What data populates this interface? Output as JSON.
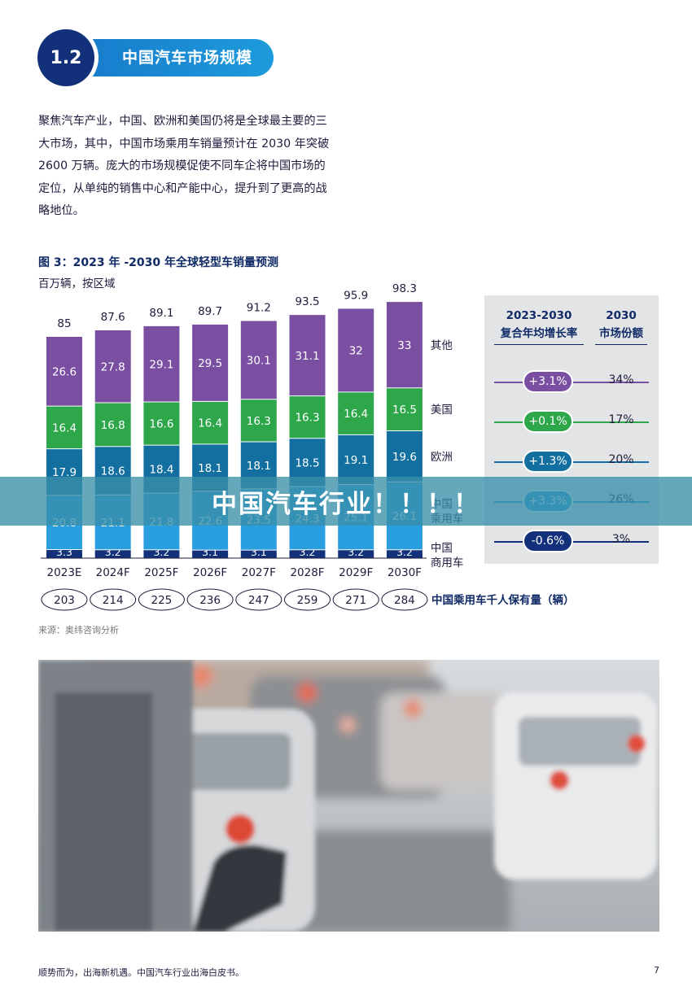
{
  "section": {
    "number": "1.2",
    "title": "中国汽车市场规模"
  },
  "intro_text": "聚焦汽车产业，中国、欧洲和美国仍将是全球最主要的三大市场，其中，中国市场乘用车销量预计在 2030 年突破 2600 万辆。庞大的市场规模促使不同车企将中国市场的定位，从单纯的销售中心和产能中心，提升到了更高的战略地位。",
  "figure": {
    "title": "图 3：2023 年 -2030 年全球轻型车销量预测",
    "unit": "百万辆，按区域"
  },
  "chart_data": {
    "type": "bar",
    "stacked": true,
    "title": "图 3：2023 年 -2030 年全球轻型车销量预测",
    "ylabel": "百万辆，按区域",
    "categories": [
      "2023E",
      "2024F",
      "2025F",
      "2026F",
      "2027F",
      "2028F",
      "2029F",
      "2030F"
    ],
    "totals": [
      85,
      87.6,
      89.1,
      89.7,
      91.2,
      93.5,
      95.9,
      98.3
    ],
    "series": [
      {
        "name": "中国商用车",
        "color": "#12317a",
        "values": [
          3.3,
          3.2,
          3.2,
          3.1,
          3.1,
          3.2,
          3.2,
          3.2
        ]
      },
      {
        "name": "中国乘用车",
        "color": "#2a9fe0",
        "values": [
          20.8,
          21.1,
          21.8,
          22.6,
          23.5,
          24.3,
          25.1,
          26.1
        ]
      },
      {
        "name": "欧洲",
        "color": "#126f9f",
        "values": [
          17.9,
          18.6,
          18.4,
          18.1,
          18.1,
          18.5,
          19.1,
          19.6
        ]
      },
      {
        "name": "美国",
        "color": "#2ea64a",
        "values": [
          16.4,
          16.8,
          16.6,
          16.4,
          16.3,
          16.3,
          16.4,
          16.5
        ]
      },
      {
        "name": "其他",
        "color": "#7a4fa1",
        "values": [
          26.6,
          27.8,
          29.1,
          29.5,
          30.1,
          31.1,
          32,
          33
        ]
      }
    ],
    "per_thousand": {
      "label": "中国乘用车千人保有量（辆）",
      "values": [
        203,
        214,
        225,
        236,
        247,
        259,
        271,
        284
      ]
    }
  },
  "growth_table": {
    "header_cagr": [
      "2023-2030",
      "复合年均增长率"
    ],
    "header_share": [
      "2030",
      "市场份额"
    ],
    "rows": [
      {
        "cagr": "+3.1%",
        "share": "34%",
        "color": "#7a4fa1"
      },
      {
        "cagr": "+0.1%",
        "share": "17%",
        "color": "#2ea64a"
      },
      {
        "cagr": "+1.3%",
        "share": "20%",
        "color": "#126f9f"
      },
      {
        "cagr": "+3.3%",
        "share": "26%",
        "color": "#2a9fe0"
      },
      {
        "cagr": "-0.6%",
        "share": "3%",
        "color": "#12317a"
      }
    ]
  },
  "source": "来源：奥纬咨询分析",
  "overlay_banner": "中国汽车行业！！！！",
  "footer": {
    "text": "顺势而为，出海新机遇。中国汽车行业出海白皮书。",
    "page": "7"
  }
}
